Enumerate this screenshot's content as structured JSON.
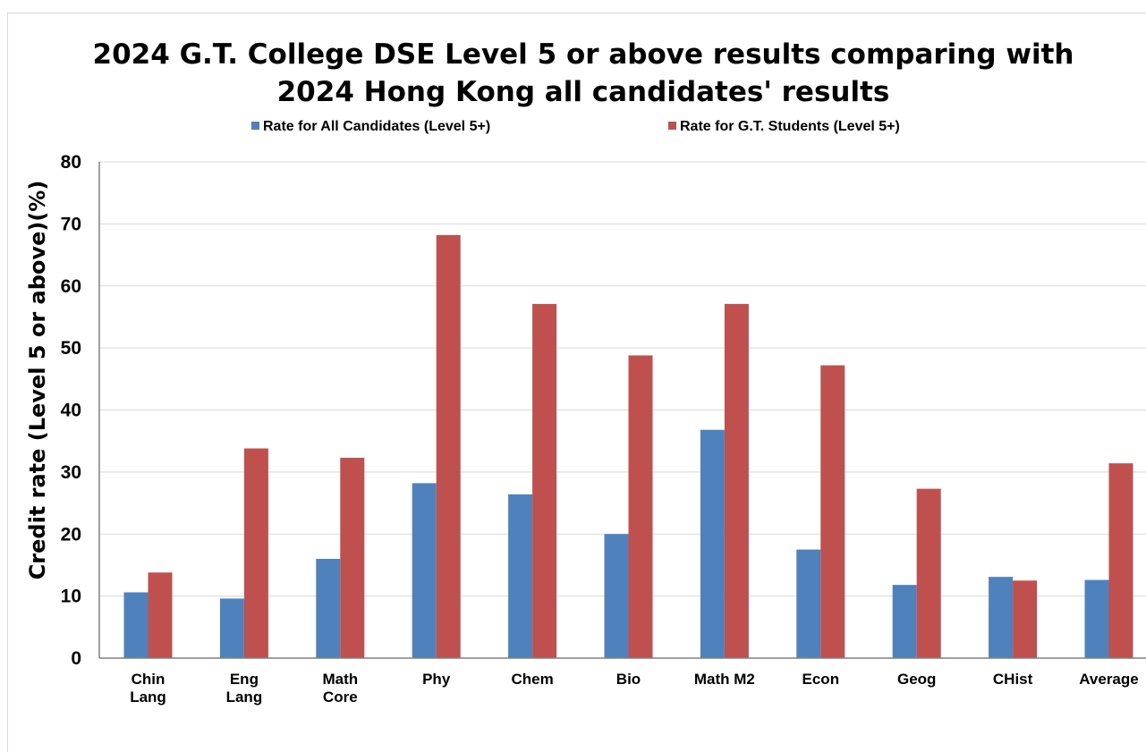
{
  "chart_data": {
    "type": "bar",
    "title_lines": [
      "2024 G.T. College DSE Level 5 or above results comparing with",
      "2024 Hong Kong all candidates' results"
    ],
    "ylabel": "Credit rate (Level 5 or above)(%)",
    "xlabel": "",
    "ylim": [
      0,
      80
    ],
    "yticks": [
      "0",
      "10",
      "20",
      "30",
      "40",
      "50",
      "60",
      "70",
      "80"
    ],
    "grid": true,
    "legend_position": "top",
    "categories": [
      [
        "Chin",
        "Lang"
      ],
      [
        "Eng",
        "Lang"
      ],
      [
        "Math",
        "Core"
      ],
      [
        "Phy"
      ],
      [
        "Chem"
      ],
      [
        "Bio"
      ],
      [
        "Math M2"
      ],
      [
        "Econ"
      ],
      [
        "Geog"
      ],
      [
        "CHist"
      ],
      [
        "Average"
      ]
    ],
    "series": [
      {
        "name": "Rate for All Candidates (Level 5+)",
        "color": "#4f81bd",
        "values": [
          10.6,
          9.6,
          16.0,
          28.2,
          26.4,
          20.0,
          36.8,
          17.5,
          11.8,
          13.1,
          12.6
        ]
      },
      {
        "name": "Rate for G.T. Students (Level 5+)",
        "color": "#c0504d",
        "values": [
          13.8,
          33.8,
          32.3,
          68.2,
          57.1,
          48.8,
          57.1,
          47.2,
          27.3,
          12.5,
          31.4
        ]
      }
    ]
  }
}
